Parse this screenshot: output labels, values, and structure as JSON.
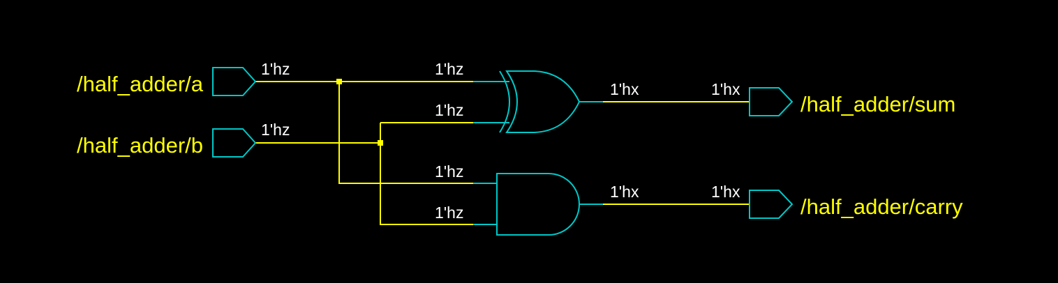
{
  "colors": {
    "background": "#000000",
    "wire": "#ffff00",
    "component": "#00c8c8",
    "port_label": "#ffff00",
    "net_value": "#ffffff"
  },
  "inputs": [
    {
      "name": "/half_adder/a",
      "value": "1'hz"
    },
    {
      "name": "/half_adder/b",
      "value": "1'hz"
    }
  ],
  "gates": {
    "xor": {
      "type": "XOR",
      "input_values": [
        "1'hz",
        "1'hz"
      ],
      "output_value": "1'hx"
    },
    "and": {
      "type": "AND",
      "input_values": [
        "1'hz",
        "1'hz"
      ],
      "output_value": "1'hx"
    }
  },
  "outputs": [
    {
      "name": "/half_adder/sum",
      "value": "1'hx"
    },
    {
      "name": "/half_adder/carry",
      "value": "1'hx"
    }
  ]
}
